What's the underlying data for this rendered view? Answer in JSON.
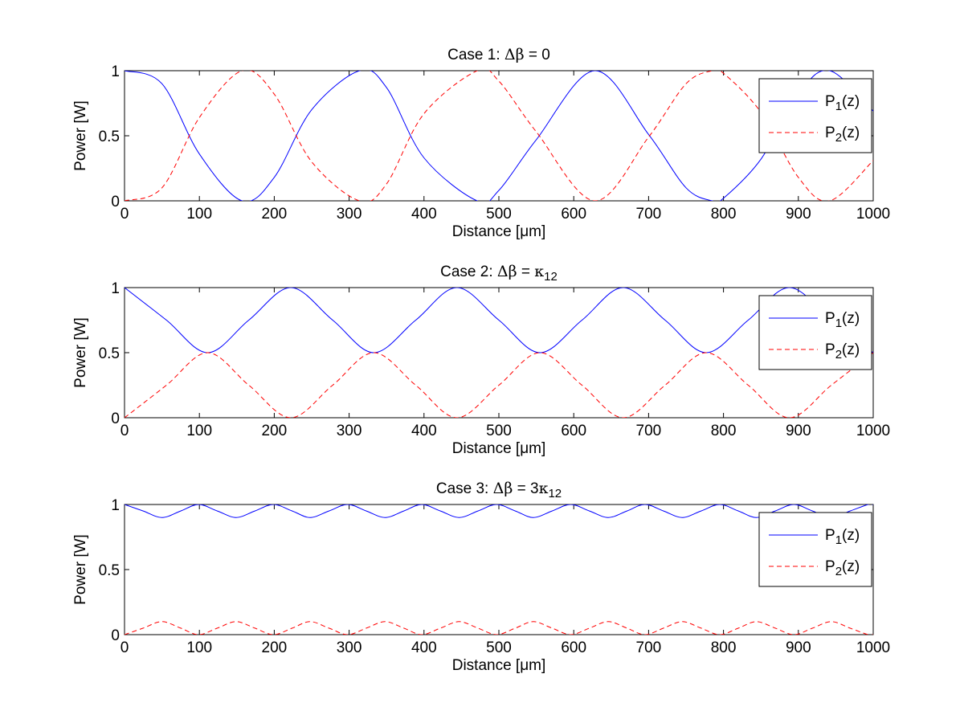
{
  "chart_data": [
    {
      "type": "line",
      "title": "Case 1: Δβ = 0",
      "title_parts": [
        "Case 1: ",
        "Δβ",
        " = 0"
      ],
      "xlabel": "Distance [μm]",
      "ylabel": "Power [W]",
      "xlim": [
        0,
        1000
      ],
      "ylim": [
        0,
        1
      ],
      "xticks": [
        0,
        100,
        200,
        300,
        400,
        500,
        600,
        700,
        800,
        900,
        1000
      ],
      "xtick_labels": [
        "0",
        "100",
        "200",
        "300",
        "400",
        "500",
        "600",
        "700",
        "800",
        "900",
        "1000"
      ],
      "yticks": [
        0,
        0.5,
        1
      ],
      "ytick_labels": [
        "0",
        "0.5",
        "1"
      ],
      "legend_location": "top-right",
      "series": [
        {
          "name": "P1(z)",
          "label_main": "P",
          "label_sub": "1",
          "label_tail": "(z)",
          "color": "#0000ff",
          "dash": "solid",
          "x": [
            0,
            50,
            100,
            157,
            200,
            250,
            314,
            350,
            400,
            471,
            500,
            550,
            628,
            700,
            750,
            785,
            800,
            850,
            900,
            942,
            1000
          ],
          "y": [
            1.0,
            0.9,
            0.36,
            0.0,
            0.18,
            0.7,
            1.0,
            0.87,
            0.33,
            0.0,
            0.08,
            0.47,
            1.0,
            0.51,
            0.1,
            0.0,
            0.02,
            0.32,
            0.82,
            1.0,
            0.69
          ]
        },
        {
          "name": "P2(z)",
          "label_main": "P",
          "label_sub": "2",
          "label_tail": "(z)",
          "color": "#ff0000",
          "dash": "dashed",
          "x": [
            0,
            50,
            100,
            157,
            200,
            250,
            314,
            350,
            400,
            471,
            500,
            550,
            628,
            700,
            750,
            785,
            800,
            850,
            900,
            942,
            1000
          ],
          "y": [
            0.0,
            0.1,
            0.64,
            1.0,
            0.82,
            0.3,
            0.0,
            0.13,
            0.67,
            1.0,
            0.92,
            0.53,
            0.0,
            0.49,
            0.9,
            1.0,
            0.98,
            0.68,
            0.18,
            0.0,
            0.31
          ]
        }
      ]
    },
    {
      "type": "line",
      "title": "Case 2: Δβ = κ12",
      "title_parts": [
        "Case 2: ",
        "Δβ",
        " = ",
        "κ",
        "12"
      ],
      "xlabel": "Distance [μm]",
      "ylabel": "Power [W]",
      "xlim": [
        0,
        1000
      ],
      "ylim": [
        0,
        1
      ],
      "xticks": [
        0,
        100,
        200,
        300,
        400,
        500,
        600,
        700,
        800,
        900,
        1000
      ],
      "xtick_labels": [
        "0",
        "100",
        "200",
        "300",
        "400",
        "500",
        "600",
        "700",
        "800",
        "900",
        "1000"
      ],
      "yticks": [
        0,
        0.5,
        1
      ],
      "ytick_labels": [
        "0",
        "0.5",
        "1"
      ],
      "legend_location": "top-right",
      "series": [
        {
          "name": "P1(z)",
          "label_main": "P",
          "label_sub": "1",
          "label_tail": "(z)",
          "color": "#0000ff",
          "dash": "solid",
          "x": [
            0,
            56,
            111,
            166,
            222,
            278,
            333,
            389,
            444,
            500,
            555,
            611,
            666,
            722,
            777,
            833,
            888,
            944,
            1000
          ],
          "y": [
            1.0,
            0.75,
            0.5,
            0.75,
            1.0,
            0.75,
            0.5,
            0.75,
            1.0,
            0.75,
            0.5,
            0.75,
            1.0,
            0.75,
            0.5,
            0.75,
            1.0,
            0.75,
            0.5
          ]
        },
        {
          "name": "P2(z)",
          "label_main": "P",
          "label_sub": "2",
          "label_tail": "(z)",
          "color": "#ff0000",
          "dash": "dashed",
          "x": [
            0,
            56,
            111,
            166,
            222,
            278,
            333,
            389,
            444,
            500,
            555,
            611,
            666,
            722,
            777,
            833,
            888,
            944,
            1000
          ],
          "y": [
            0.0,
            0.25,
            0.5,
            0.25,
            0.0,
            0.25,
            0.5,
            0.25,
            0.0,
            0.25,
            0.5,
            0.25,
            0.0,
            0.25,
            0.5,
            0.25,
            0.0,
            0.25,
            0.5
          ]
        }
      ]
    },
    {
      "type": "line",
      "title": "Case 3: Δβ = 3κ12",
      "title_parts": [
        "Case 3: ",
        "Δβ",
        " = 3",
        "κ",
        "12"
      ],
      "xlabel": "Distance [μm]",
      "ylabel": "Power [W]",
      "xlim": [
        0,
        1000
      ],
      "ylim": [
        0,
        1
      ],
      "xticks": [
        0,
        100,
        200,
        300,
        400,
        500,
        600,
        700,
        800,
        900,
        1000
      ],
      "xtick_labels": [
        "0",
        "100",
        "200",
        "300",
        "400",
        "500",
        "600",
        "700",
        "800",
        "900",
        "1000"
      ],
      "yticks": [
        0,
        0.5,
        1
      ],
      "ytick_labels": [
        "0",
        "0.5",
        "1"
      ],
      "legend_location": "top-right",
      "series": [
        {
          "name": "P1(z)",
          "label_main": "P",
          "label_sub": "1",
          "label_tail": "(z)",
          "color": "#0000ff",
          "dash": "solid",
          "x": [
            0,
            25,
            50,
            75,
            99,
            124,
            149,
            174,
            199,
            224,
            248,
            273,
            298,
            323,
            348,
            373,
            397,
            422,
            447,
            472,
            497,
            522,
            546,
            571,
            596,
            621,
            646,
            671,
            695,
            720,
            745,
            770,
            795,
            820,
            844,
            869,
            894,
            919,
            944,
            969,
            993,
            1000
          ],
          "y": [
            1.0,
            0.95,
            0.9,
            0.95,
            1.0,
            0.95,
            0.9,
            0.95,
            1.0,
            0.95,
            0.9,
            0.95,
            1.0,
            0.95,
            0.9,
            0.95,
            1.0,
            0.95,
            0.9,
            0.95,
            1.0,
            0.95,
            0.9,
            0.95,
            1.0,
            0.95,
            0.9,
            0.95,
            1.0,
            0.95,
            0.9,
            0.95,
            1.0,
            0.95,
            0.9,
            0.95,
            1.0,
            0.95,
            0.9,
            0.95,
            1.0,
            1.0
          ]
        },
        {
          "name": "P2(z)",
          "label_main": "P",
          "label_sub": "2",
          "label_tail": "(z)",
          "color": "#ff0000",
          "dash": "dashed",
          "x": [
            0,
            25,
            50,
            75,
            99,
            124,
            149,
            174,
            199,
            224,
            248,
            273,
            298,
            323,
            348,
            373,
            397,
            422,
            447,
            472,
            497,
            522,
            546,
            571,
            596,
            621,
            646,
            671,
            695,
            720,
            745,
            770,
            795,
            820,
            844,
            869,
            894,
            919,
            944,
            969,
            993,
            1000
          ],
          "y": [
            0.0,
            0.05,
            0.1,
            0.05,
            0.0,
            0.05,
            0.1,
            0.05,
            0.0,
            0.05,
            0.1,
            0.05,
            0.0,
            0.05,
            0.1,
            0.05,
            0.0,
            0.05,
            0.1,
            0.05,
            0.0,
            0.05,
            0.1,
            0.05,
            0.0,
            0.05,
            0.1,
            0.05,
            0.0,
            0.05,
            0.1,
            0.05,
            0.0,
            0.05,
            0.1,
            0.05,
            0.0,
            0.05,
            0.1,
            0.05,
            0.0,
            0.0
          ]
        }
      ]
    }
  ]
}
